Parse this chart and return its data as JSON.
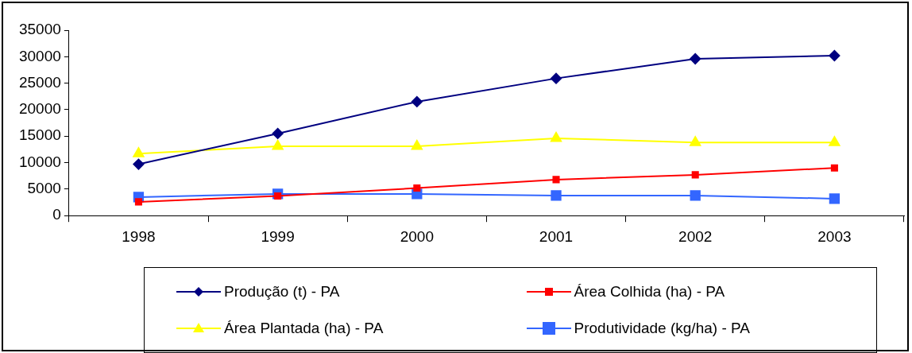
{
  "chart_data": {
    "type": "line",
    "categories": [
      "1998",
      "1999",
      "2000",
      "2001",
      "2002",
      "2003"
    ],
    "series": [
      {
        "name": "Produção (t) - PA",
        "color": "#000080",
        "marker": "diamond",
        "values": [
          9700,
          15500,
          21500,
          25900,
          29600,
          30200
        ]
      },
      {
        "name": "Área Colhida (ha) - PA",
        "color": "#ff0000",
        "marker": "square",
        "values": [
          2600,
          3700,
          5200,
          6800,
          7700,
          9000
        ]
      },
      {
        "name": "Área Plantada (ha) - PA",
        "color": "#ffff00",
        "marker": "triangle",
        "values": [
          11700,
          13100,
          13100,
          14600,
          13800,
          13800
        ]
      },
      {
        "name": "Produtividade (kg/ha) - PA",
        "color": "#3366ff",
        "marker": "square",
        "values": [
          3500,
          4100,
          4100,
          3800,
          3800,
          3200
        ]
      }
    ],
    "ylim": [
      0,
      35000
    ],
    "yticks": [
      0,
      5000,
      10000,
      15000,
      20000,
      25000,
      30000,
      35000
    ],
    "grid": false,
    "legend": "bottom"
  }
}
